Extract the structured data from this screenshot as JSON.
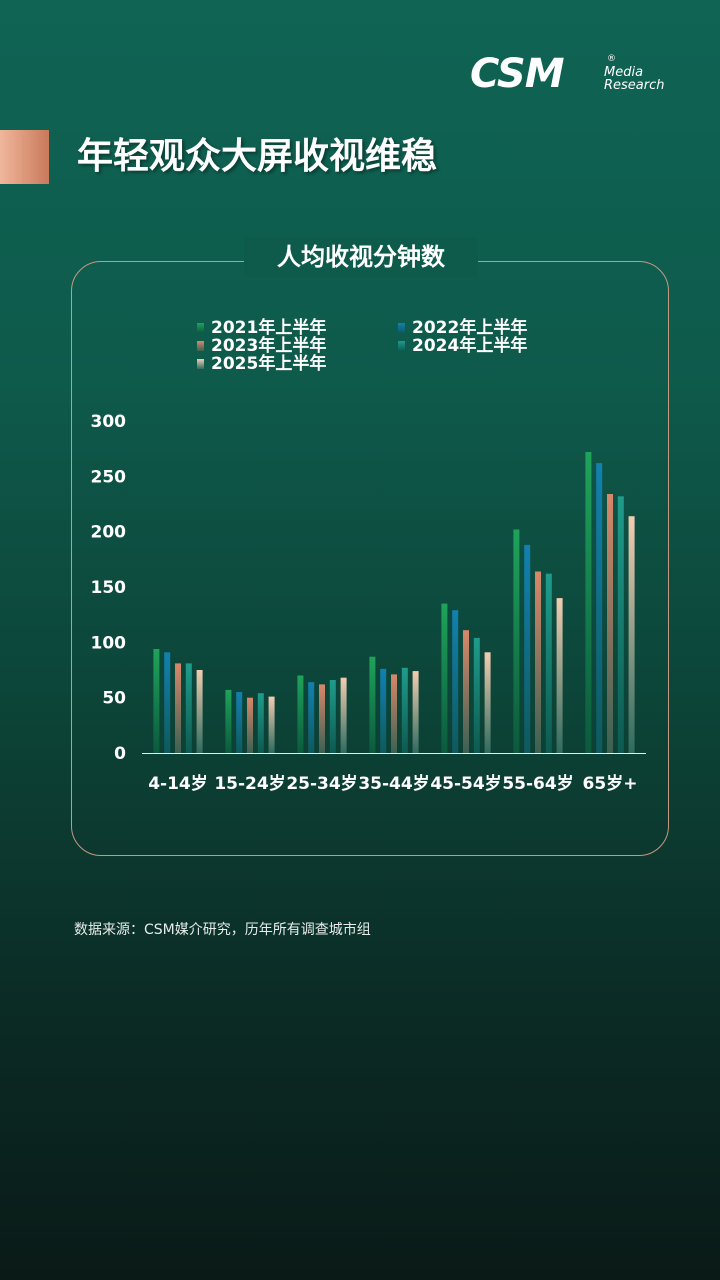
{
  "logo": {
    "text": "CSM",
    "reg": "®",
    "line1": "Media",
    "line2": "Research"
  },
  "title": "年轻观众大屏收视维稳",
  "chart_title": "人均收视分钟数",
  "source": "数据来源：CSM媒介研究，历年所有调查城市组",
  "colors": {
    "s2021": [
      "#1fa35a",
      "#0b5a3d"
    ],
    "s2022": [
      "#1380b0",
      "#0e5a5e"
    ],
    "s2023": [
      "#d9876a",
      "#3b6153"
    ],
    "s2024": [
      "#1f9c8c",
      "#0d5a50"
    ],
    "s2025": [
      "#f3cdb2",
      "#2f6b5e"
    ]
  },
  "chart_data": {
    "type": "bar",
    "categories": [
      "4-14岁",
      "15-24岁",
      "25-34岁",
      "35-44岁",
      "45-54岁",
      "55-64岁",
      "65岁+"
    ],
    "series": [
      {
        "name": "2021年上半年",
        "key": "s2021",
        "values": [
          94,
          57,
          70,
          87,
          135,
          202,
          272
        ]
      },
      {
        "name": "2022年上半年",
        "key": "s2022",
        "values": [
          91,
          55,
          64,
          76,
          129,
          188,
          262
        ]
      },
      {
        "name": "2023年上半年",
        "key": "s2023",
        "values": [
          81,
          50,
          62,
          71,
          111,
          164,
          234
        ]
      },
      {
        "name": "2024年上半年",
        "key": "s2024",
        "values": [
          81,
          54,
          66,
          77,
          104,
          162,
          232
        ]
      },
      {
        "name": "2025年上半年",
        "key": "s2025",
        "values": [
          75,
          51,
          68,
          74,
          91,
          140,
          214
        ]
      }
    ],
    "ylim": [
      0,
      300
    ],
    "yticks": [
      0,
      50,
      100,
      150,
      200,
      250,
      300
    ],
    "grid": false,
    "legend": "top"
  }
}
